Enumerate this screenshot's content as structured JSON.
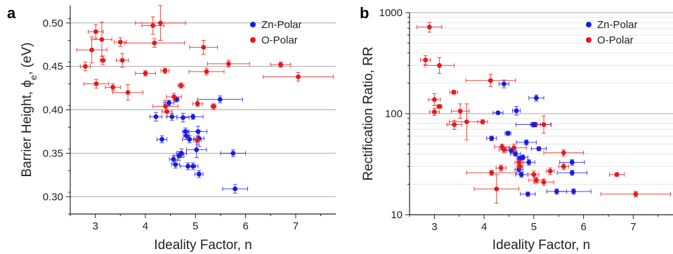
{
  "colors": {
    "zn": "#1a1ae6",
    "o": "#e61a1a",
    "grid_major": "#aaaaaa",
    "grid_minor": "#e6e6e6",
    "axis": "#222222"
  },
  "chart_data": [
    {
      "type": "scatter",
      "panel_label": "a",
      "xlabel": "Ideality Factor, n",
      "ylabel": "Barrier Height, ϕ",
      "ylabel_sub": "e",
      "ylabel_unit": ", (eV)",
      "xlim": [
        2.5,
        7.8
      ],
      "ylim": [
        0.28,
        0.52
      ],
      "x_ticks": [
        "3",
        "4",
        "5",
        "6",
        "7"
      ],
      "y_ticks": [
        "0.30",
        "0.35",
        "0.40",
        "0.45",
        "0.50"
      ],
      "grid": "horizontal",
      "legend": "top-right",
      "series": [
        {
          "name": "Zn-Polar",
          "color": "zn",
          "points": [
            {
              "x": 4.47,
              "y": 0.408,
              "xerr": 0.1,
              "yerr": 0.003
            },
            {
              "x": 4.62,
              "y": 0.412,
              "xerr": 0.05,
              "yerr": 0.003
            },
            {
              "x": 4.95,
              "y": 0.392,
              "xerr": 0.2,
              "yerr": 0.003
            },
            {
              "x": 4.21,
              "y": 0.392,
              "xerr": 0.12,
              "yerr": 0.005
            },
            {
              "x": 4.53,
              "y": 0.392,
              "xerr": 0.1,
              "yerr": 0.004
            },
            {
              "x": 4.75,
              "y": 0.391,
              "xerr": 0.12,
              "yerr": 0.005
            },
            {
              "x": 5.49,
              "y": 0.412,
              "xerr": 0.45,
              "yerr": 0.004
            },
            {
              "x": 5.05,
              "y": 0.375,
              "xerr": 0.18,
              "yerr": 0.006
            },
            {
              "x": 4.8,
              "y": 0.375,
              "xerr": 0.06,
              "yerr": 0.004
            },
            {
              "x": 4.82,
              "y": 0.37,
              "xerr": 0.06,
              "yerr": 0.004
            },
            {
              "x": 4.88,
              "y": 0.366,
              "xerr": 0.14,
              "yerr": 0.004
            },
            {
              "x": 5.07,
              "y": 0.367,
              "xerr": 0.1,
              "yerr": 0.009
            },
            {
              "x": 4.33,
              "y": 0.366,
              "xerr": 0.1,
              "yerr": 0.004
            },
            {
              "x": 5.02,
              "y": 0.354,
              "xerr": 0.2,
              "yerr": 0.009
            },
            {
              "x": 4.72,
              "y": 0.35,
              "xerr": 0.1,
              "yerr": 0.005
            },
            {
              "x": 4.67,
              "y": 0.347,
              "xerr": 0.1,
              "yerr": 0.005
            },
            {
              "x": 5.75,
              "y": 0.35,
              "xerr": 0.25,
              "yerr": 0.004
            },
            {
              "x": 4.56,
              "y": 0.343,
              "xerr": 0.08,
              "yerr": 0.004
            },
            {
              "x": 4.6,
              "y": 0.337,
              "xerr": 0.08,
              "yerr": 0.004
            },
            {
              "x": 4.85,
              "y": 0.335,
              "xerr": 0.15,
              "yerr": 0.004
            },
            {
              "x": 4.95,
              "y": 0.335,
              "xerr": 0.1,
              "yerr": 0.004
            },
            {
              "x": 5.07,
              "y": 0.326,
              "xerr": 0.08,
              "yerr": 0.004
            },
            {
              "x": 5.79,
              "y": 0.309,
              "xerr": 0.25,
              "yerr": 0.005
            }
          ]
        },
        {
          "name": "O-Polar",
          "color": "o",
          "points": [
            {
              "x": 3.01,
              "y": 0.49,
              "xerr": 0.15,
              "yerr": 0.008
            },
            {
              "x": 3.13,
              "y": 0.481,
              "xerr": 0.2,
              "yerr": 0.02
            },
            {
              "x": 2.93,
              "y": 0.469,
              "xerr": 0.3,
              "yerr": 0.015
            },
            {
              "x": 2.8,
              "y": 0.45,
              "xerr": 0.1,
              "yerr": 0.005
            },
            {
              "x": 3.15,
              "y": 0.457,
              "xerr": 0.05,
              "yerr": 0.005
            },
            {
              "x": 3.5,
              "y": 0.478,
              "xerr": 0.12,
              "yerr": 0.005
            },
            {
              "x": 3.54,
              "y": 0.457,
              "xerr": 0.12,
              "yerr": 0.008
            },
            {
              "x": 4.15,
              "y": 0.497,
              "xerr": 0.22,
              "yerr": 0.01
            },
            {
              "x": 4.3,
              "y": 0.5,
              "xerr": 0.5,
              "yerr": 0.02
            },
            {
              "x": 4.18,
              "y": 0.477,
              "xerr": 0.6,
              "yerr": 0.005
            },
            {
              "x": 5.16,
              "y": 0.472,
              "xerr": 0.28,
              "yerr": 0.008
            },
            {
              "x": 5.66,
              "y": 0.453,
              "xerr": 0.42,
              "yerr": 0.004
            },
            {
              "x": 6.7,
              "y": 0.452,
              "xerr": 0.2,
              "yerr": 0.003
            },
            {
              "x": 7.05,
              "y": 0.438,
              "xerr": 0.7,
              "yerr": 0.005
            },
            {
              "x": 5.22,
              "y": 0.444,
              "xerr": 0.35,
              "yerr": 0.004
            },
            {
              "x": 4.39,
              "y": 0.445,
              "xerr": 0.08,
              "yerr": 0.003
            },
            {
              "x": 4.0,
              "y": 0.442,
              "xerr": 0.2,
              "yerr": 0.003
            },
            {
              "x": 3.02,
              "y": 0.43,
              "xerr": 0.25,
              "yerr": 0.005
            },
            {
              "x": 3.35,
              "y": 0.426,
              "xerr": 0.15,
              "yerr": 0.004
            },
            {
              "x": 3.65,
              "y": 0.42,
              "xerr": 0.3,
              "yerr": 0.009
            },
            {
              "x": 4.71,
              "y": 0.428,
              "xerr": 0.06,
              "yerr": 0.003
            },
            {
              "x": 4.57,
              "y": 0.415,
              "xerr": 0.15,
              "yerr": 0.004
            },
            {
              "x": 4.4,
              "y": 0.404,
              "xerr": 0.25,
              "yerr": 0.007
            },
            {
              "x": 4.43,
              "y": 0.398,
              "xerr": 0.1,
              "yerr": 0.006
            },
            {
              "x": 5.04,
              "y": 0.407,
              "xerr": 0.1,
              "yerr": 0.003
            },
            {
              "x": 5.36,
              "y": 0.404,
              "xerr": 0.05,
              "yerr": 0.003
            },
            {
              "x": 5.04,
              "y": 0.365,
              "xerr": 0.08,
              "yerr": 0.005
            }
          ]
        }
      ]
    },
    {
      "type": "scatter",
      "panel_label": "b",
      "xlabel": "Ideality Factor, n",
      "ylabel": "Rectification Ratio, RR",
      "xlim": [
        2.5,
        7.8
      ],
      "ylim": [
        10,
        1000
      ],
      "yscale": "log",
      "x_ticks": [
        "3",
        "4",
        "5",
        "6",
        "7"
      ],
      "y_ticks": [
        "10",
        "100",
        "1000"
      ],
      "grid": "horizontal",
      "legend": "top-right",
      "series": [
        {
          "name": "Zn-Polar",
          "color": "zn",
          "points": [
            {
              "x": 4.4,
              "y": 197,
              "xerr": 0.1,
              "ylo": 180,
              "yhi": 215
            },
            {
              "x": 5.05,
              "y": 143,
              "xerr": 0.15,
              "ylo": 133,
              "yhi": 153
            },
            {
              "x": 4.65,
              "y": 107,
              "xerr": 0.08,
              "ylo": 97,
              "yhi": 118
            },
            {
              "x": 4.28,
              "y": 102,
              "xerr": 0.1,
              "ylo": 99,
              "yhi": 105
            },
            {
              "x": 4.99,
              "y": 78,
              "xerr": 0.35,
              "ylo": 74,
              "yhi": 82
            },
            {
              "x": 5.03,
              "y": 78,
              "xerr": 0.1,
              "ylo": 74,
              "yhi": 82
            },
            {
              "x": 4.15,
              "y": 57,
              "xerr": 0.1,
              "ylo": 54,
              "yhi": 60
            },
            {
              "x": 4.48,
              "y": 64,
              "xerr": 0.06,
              "ylo": 61,
              "yhi": 67
            },
            {
              "x": 4.85,
              "y": 52,
              "xerr": 0.2,
              "ylo": 49,
              "yhi": 55
            },
            {
              "x": 5.1,
              "y": 45,
              "xerr": 0.15,
              "ylo": 43,
              "yhi": 47
            },
            {
              "x": 4.55,
              "y": 43,
              "xerr": 0.1,
              "ylo": 41,
              "yhi": 45
            },
            {
              "x": 4.63,
              "y": 40,
              "xerr": 0.1,
              "ylo": 38,
              "yhi": 42
            },
            {
              "x": 4.78,
              "y": 37,
              "xerr": 0.1,
              "ylo": 35,
              "yhi": 39
            },
            {
              "x": 4.72,
              "y": 36,
              "xerr": 0.06,
              "ylo": 34,
              "yhi": 38
            },
            {
              "x": 4.9,
              "y": 33,
              "xerr": 0.12,
              "ylo": 31,
              "yhi": 35
            },
            {
              "x": 5.77,
              "y": 33,
              "xerr": 0.25,
              "ylo": 31,
              "yhi": 35
            },
            {
              "x": 4.7,
              "y": 28,
              "xerr": 0.08,
              "ylo": 26,
              "yhi": 30
            },
            {
              "x": 4.75,
              "y": 25,
              "xerr": 0.12,
              "ylo": 23.5,
              "yhi": 26.5
            },
            {
              "x": 5.77,
              "y": 26,
              "xerr": 0.3,
              "ylo": 24.5,
              "yhi": 27.5
            },
            {
              "x": 5.46,
              "y": 17,
              "xerr": 0.2,
              "ylo": 16,
              "yhi": 18
            },
            {
              "x": 5.8,
              "y": 17,
              "xerr": 0.35,
              "ylo": 16,
              "yhi": 18
            },
            {
              "x": 4.88,
              "y": 16,
              "xerr": 0.15,
              "ylo": 15.2,
              "yhi": 16.8
            }
          ]
        },
        {
          "name": "O-Polar",
          "color": "o",
          "points": [
            {
              "x": 2.9,
              "y": 720,
              "xerr": 0.25,
              "ylo": 640,
              "yhi": 800
            },
            {
              "x": 2.82,
              "y": 340,
              "xerr": 0.1,
              "ylo": 305,
              "yhi": 375
            },
            {
              "x": 3.1,
              "y": 300,
              "xerr": 0.3,
              "ylo": 250,
              "yhi": 360
            },
            {
              "x": 3.39,
              "y": 163,
              "xerr": 0.08,
              "ylo": 156,
              "yhi": 170
            },
            {
              "x": 4.13,
              "y": 213,
              "xerr": 0.5,
              "ylo": 185,
              "yhi": 245
            },
            {
              "x": 3.0,
              "y": 138,
              "xerr": 0.12,
              "ylo": 120,
              "yhi": 158
            },
            {
              "x": 3.1,
              "y": 118,
              "xerr": 0.05,
              "ylo": 113,
              "yhi": 123
            },
            {
              "x": 3.0,
              "y": 104,
              "xerr": 0.1,
              "ylo": 96,
              "yhi": 113
            },
            {
              "x": 3.52,
              "y": 106,
              "xerr": 0.18,
              "ylo": 90,
              "yhi": 125
            },
            {
              "x": 3.97,
              "y": 83,
              "xerr": 0.1,
              "ylo": 79,
              "yhi": 87
            },
            {
              "x": 3.65,
              "y": 83,
              "xerr": 0.35,
              "ylo": 55,
              "yhi": 125
            },
            {
              "x": 3.4,
              "y": 78,
              "xerr": 0.15,
              "ylo": 70,
              "yhi": 86
            },
            {
              "x": 5.2,
              "y": 78,
              "xerr": 0.15,
              "ylo": 64,
              "yhi": 95
            },
            {
              "x": 4.36,
              "y": 47,
              "xerr": 0.15,
              "ylo": 44,
              "yhi": 50
            },
            {
              "x": 4.4,
              "y": 44,
              "xerr": 0.1,
              "ylo": 41,
              "yhi": 47
            },
            {
              "x": 4.6,
              "y": 46,
              "xerr": 0.25,
              "ylo": 42,
              "yhi": 50
            },
            {
              "x": 5.6,
              "y": 41,
              "xerr": 0.4,
              "ylo": 38,
              "yhi": 44
            },
            {
              "x": 4.7,
              "y": 33,
              "xerr": 0.08,
              "ylo": 31,
              "yhi": 35
            },
            {
              "x": 4.34,
              "y": 29,
              "xerr": 0.1,
              "ylo": 27,
              "yhi": 31
            },
            {
              "x": 4.72,
              "y": 30,
              "xerr": 0.06,
              "ylo": 28,
              "yhi": 32
            },
            {
              "x": 5.6,
              "y": 30,
              "xerr": 0.1,
              "ylo": 28,
              "yhi": 32
            },
            {
              "x": 5.33,
              "y": 27,
              "xerr": 0.08,
              "ylo": 25,
              "yhi": 29
            },
            {
              "x": 4.15,
              "y": 26,
              "xerr": 0.5,
              "ylo": 24.5,
              "yhi": 27.5
            },
            {
              "x": 5.0,
              "y": 25,
              "xerr": 0.1,
              "ylo": 23,
              "yhi": 27
            },
            {
              "x": 5.05,
              "y": 22,
              "xerr": 0.15,
              "ylo": 20.5,
              "yhi": 23.5
            },
            {
              "x": 5.2,
              "y": 21,
              "xerr": 0.2,
              "ylo": 19.5,
              "yhi": 22.5
            },
            {
              "x": 6.67,
              "y": 25,
              "xerr": 0.15,
              "ylo": 24,
              "yhi": 26
            },
            {
              "x": 4.25,
              "y": 18,
              "xerr": 0.45,
              "ylo": 13,
              "yhi": 25
            },
            {
              "x": 7.05,
              "y": 16,
              "xerr": 0.7,
              "ylo": 15,
              "yhi": 17
            }
          ]
        }
      ]
    }
  ]
}
